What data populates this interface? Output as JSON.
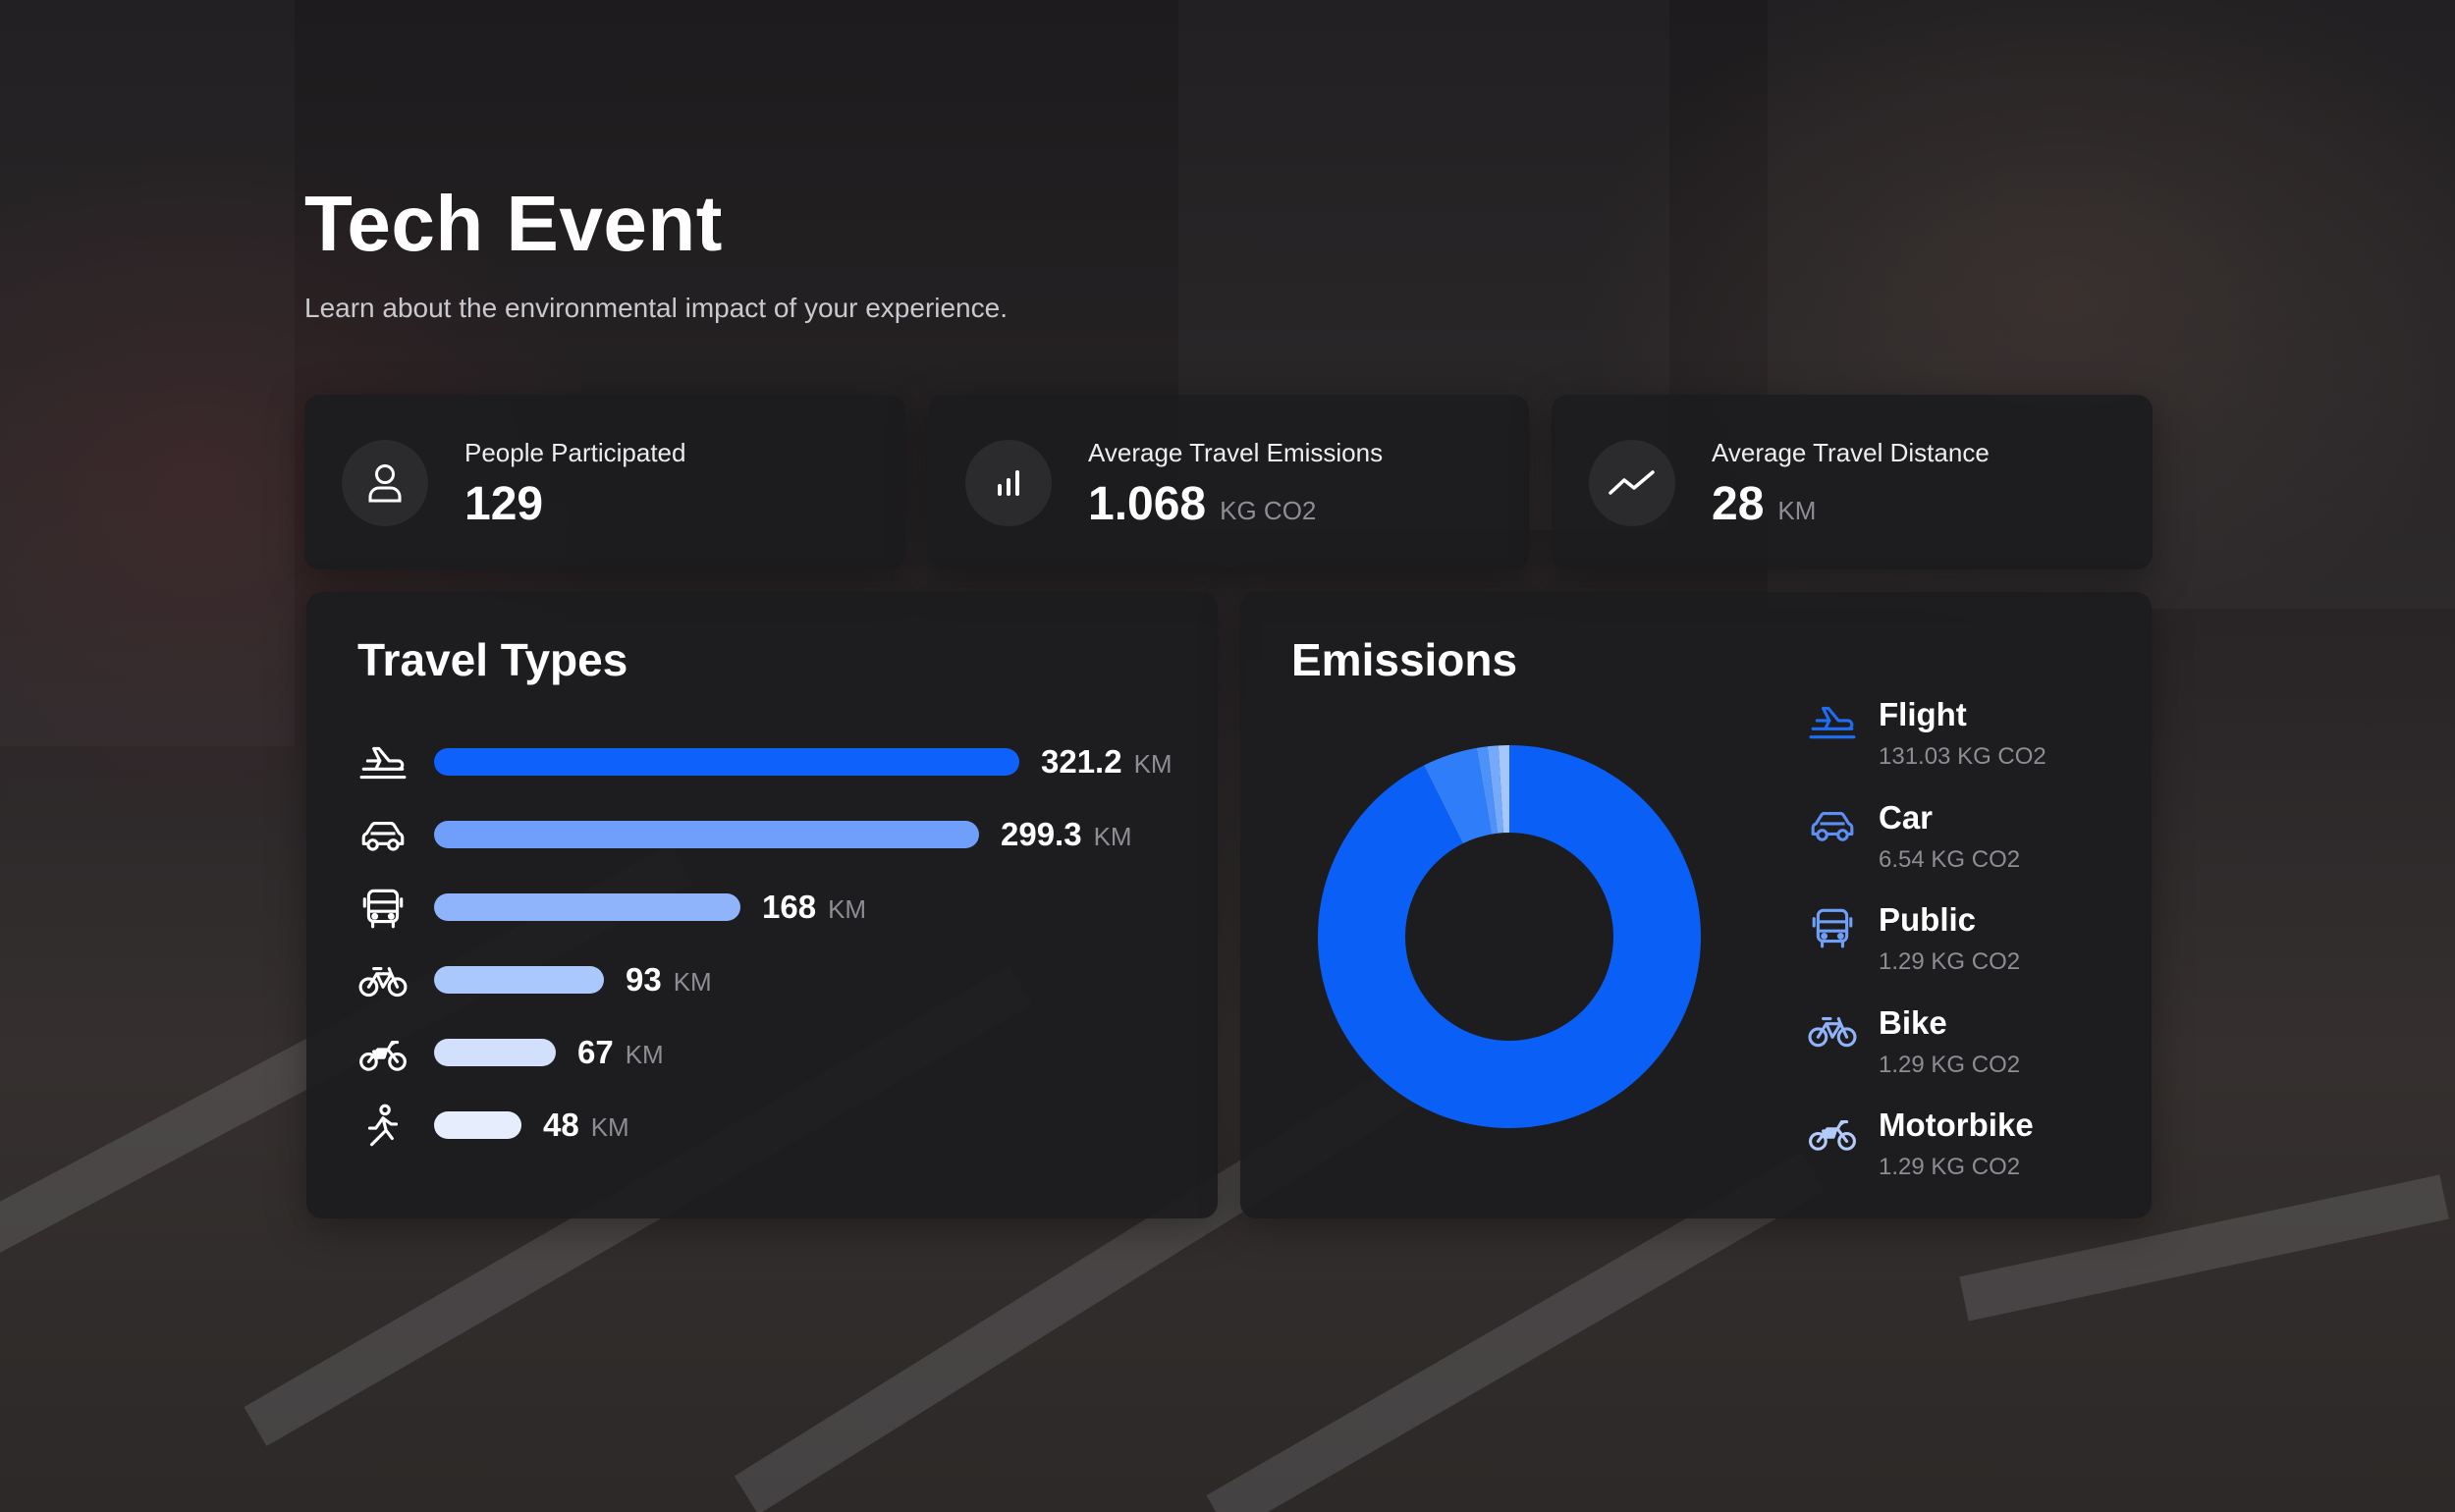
{
  "header": {
    "title": "Tech Event",
    "subtitle": "Learn about the environmental impact of your experience."
  },
  "stats": [
    {
      "icon": "person-icon",
      "label": "People Participated",
      "value": "129",
      "unit": ""
    },
    {
      "icon": "bar-chart-icon",
      "label": "Average Travel Emissions",
      "value": "1.068",
      "unit": "KG CO2"
    },
    {
      "icon": "trend-line-icon",
      "label": "Average Travel Distance",
      "value": "28",
      "unit": "KM"
    }
  ],
  "travel_types": {
    "title": "Travel Types",
    "unit": "KM",
    "max": 321.2,
    "items": [
      {
        "icon": "flight-icon",
        "value": "321.2",
        "amount": 321.2,
        "color": "#0e62fb"
      },
      {
        "icon": "car-icon",
        "value": "299.3",
        "amount": 299.3,
        "color": "#6f9ffa"
      },
      {
        "icon": "bus-icon",
        "value": "168",
        "amount": 168,
        "color": "#8fb4fb"
      },
      {
        "icon": "bike-icon",
        "value": "93",
        "amount": 93,
        "color": "#aac8fc"
      },
      {
        "icon": "motorbike-icon",
        "value": "67",
        "amount": 67,
        "color": "#d2e0fd"
      },
      {
        "icon": "walking-icon",
        "value": "48",
        "amount": 48,
        "color": "#e6eefe"
      }
    ]
  },
  "emissions": {
    "title": "Emissions",
    "unit": "KG CO2",
    "items": [
      {
        "name": "Flight",
        "value": "131.03",
        "amount": 131.03,
        "icon": "flight-icon",
        "icon_color": "#1e6ef5",
        "slice_color": "#0a5ff7"
      },
      {
        "name": "Car",
        "value": "6.54",
        "amount": 6.54,
        "icon": "car-icon",
        "icon_color": "#5c8ef5",
        "slice_color": "#2f7df8"
      },
      {
        "name": "Public",
        "value": "1.29",
        "amount": 1.29,
        "icon": "bus-icon",
        "icon_color": "#6f9ff7",
        "slice_color": "#4d92fa"
      },
      {
        "name": "Bike",
        "value": "1.29",
        "amount": 1.29,
        "icon": "bike-icon",
        "icon_color": "#8fb2f9",
        "slice_color": "#74aafb"
      },
      {
        "name": "Motorbike",
        "value": "1.29",
        "amount": 1.29,
        "icon": "motorbike-icon",
        "icon_color": "#b3cbfb",
        "slice_color": "#a6c6fc"
      }
    ]
  },
  "chart_data": [
    {
      "type": "bar",
      "title": "Travel Types",
      "categories": [
        "Flight",
        "Car",
        "Public",
        "Bike",
        "Motorbike",
        "Walking"
      ],
      "values": [
        321.2,
        299.3,
        168,
        93,
        67,
        48
      ],
      "unit": "KM"
    },
    {
      "type": "pie",
      "title": "Emissions",
      "categories": [
        "Flight",
        "Car",
        "Public",
        "Bike",
        "Motorbike"
      ],
      "values": [
        131.03,
        6.54,
        1.29,
        1.29,
        1.29
      ],
      "unit": "KG CO2"
    }
  ]
}
